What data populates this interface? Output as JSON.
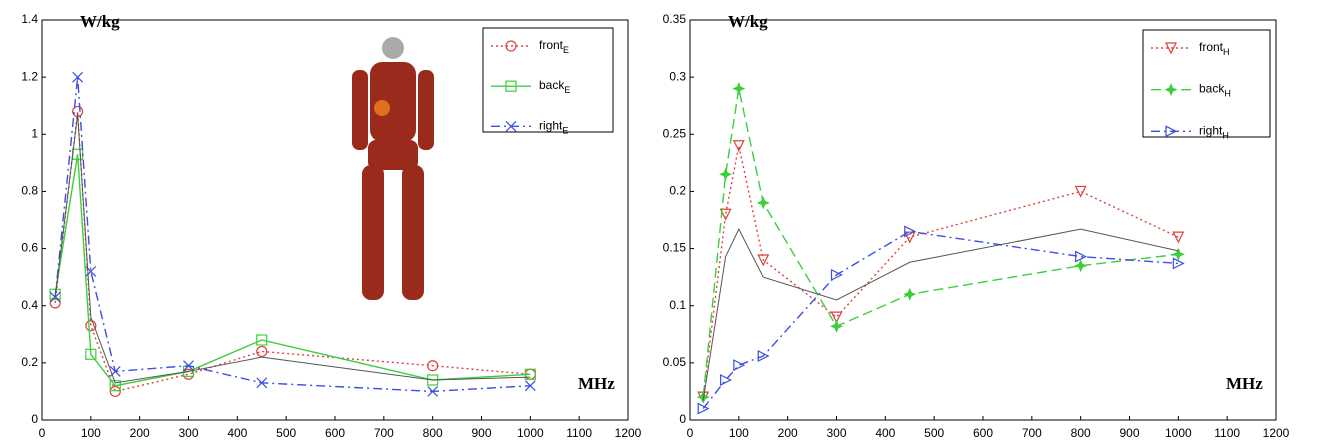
{
  "chart_data": [
    {
      "type": "line",
      "ylabel": "W/kg",
      "xlabel": "MHz",
      "x": [
        27,
        73,
        100,
        150,
        300,
        450,
        800,
        1000
      ],
      "xlim": [
        0,
        1200
      ],
      "xticks": [
        0,
        100,
        200,
        300,
        400,
        500,
        600,
        700,
        800,
        900,
        1000,
        1100,
        1200
      ],
      "ylim": [
        0,
        1.4
      ],
      "yticks": [
        0,
        0.2,
        0.4,
        0.6,
        0.8,
        1,
        1.2,
        1.4
      ],
      "series": [
        {
          "name": "front",
          "subscript": "E",
          "color": "#e0403a",
          "linestyle": "dotted",
          "marker": "circle",
          "values": [
            0.41,
            1.08,
            0.33,
            0.1,
            0.16,
            0.24,
            0.19,
            0.16
          ]
        },
        {
          "name": "back",
          "subscript": "E",
          "color": "#3ccf3c",
          "linestyle": "solid",
          "marker": "square",
          "values": [
            0.44,
            0.93,
            0.23,
            0.12,
            0.17,
            0.28,
            0.14,
            0.16
          ]
        },
        {
          "name": "right",
          "subscript": "E",
          "color": "#3b4fe0",
          "linestyle": "dashdot",
          "marker": "x",
          "values": [
            0.43,
            1.2,
            0.52,
            0.17,
            0.19,
            0.13,
            0.1,
            0.12
          ]
        },
        {
          "color": "#555555",
          "linestyle": "solid",
          "marker": "none",
          "values": [
            0.43,
            1.07,
            0.36,
            0.13,
            0.17,
            0.22,
            0.14,
            0.15
          ]
        }
      ]
    },
    {
      "type": "line",
      "ylabel": "W/kg",
      "xlabel": "MHz",
      "x": [
        27,
        73,
        100,
        150,
        300,
        450,
        800,
        1000
      ],
      "xlim": [
        0,
        1200
      ],
      "xticks": [
        0,
        100,
        200,
        300,
        400,
        500,
        600,
        700,
        800,
        900,
        1000,
        1100,
        1200
      ],
      "ylim": [
        0,
        0.35
      ],
      "yticks": [
        0,
        0.05,
        0.1,
        0.15,
        0.2,
        0.25,
        0.3,
        0.35
      ],
      "series": [
        {
          "name": "front",
          "subscript": "H",
          "color": "#e0403a",
          "linestyle": "dotted",
          "marker": "triangle-down",
          "values": [
            0.02,
            0.18,
            0.24,
            0.14,
            0.09,
            0.16,
            0.2,
            0.16
          ]
        },
        {
          "name": "back",
          "subscript": "H",
          "color": "#3ccf3c",
          "linestyle": "dashed",
          "marker": "star",
          "values": [
            0.02,
            0.215,
            0.29,
            0.19,
            0.082,
            0.11,
            0.135,
            0.145
          ]
        },
        {
          "name": "right",
          "subscript": "H",
          "color": "#3b4fe0",
          "linestyle": "dashdot",
          "marker": "triangle-right",
          "values": [
            0.01,
            0.035,
            0.048,
            0.056,
            0.127,
            0.165,
            0.143,
            0.137
          ]
        },
        {
          "color": "#555555",
          "linestyle": "solid",
          "marker": "none",
          "values": [
            0.017,
            0.143,
            0.167,
            0.125,
            0.105,
            0.138,
            0.167,
            0.148
          ]
        }
      ]
    }
  ]
}
